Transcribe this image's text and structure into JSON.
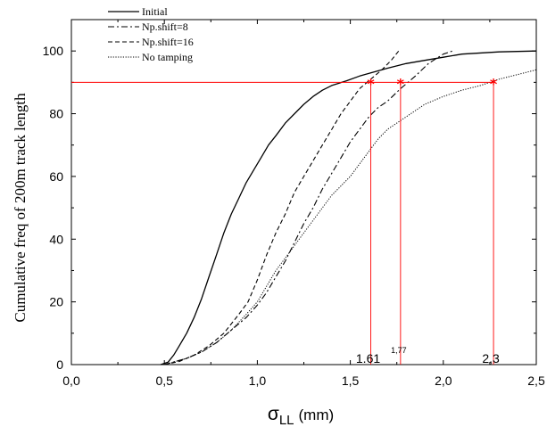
{
  "chart_data": {
    "type": "line",
    "xlabel_symbol": "σ",
    "xlabel_subscript": "LL",
    "xlabel_unit": "(mm)",
    "ylabel": "Cumulative freq of 200m track length",
    "xlim": [
      0,
      2.5
    ],
    "ylim": [
      0,
      110
    ],
    "x_ticks": [
      "0,0",
      "0,5",
      "1,0",
      "1,5",
      "2,0",
      "2,5"
    ],
    "y_ticks": [
      "0",
      "20",
      "40",
      "60",
      "80",
      "100"
    ],
    "legend_position": "top-left",
    "series": [
      {
        "name": "Initial",
        "style": "solid",
        "color": "#000000",
        "points": [
          [
            0.48,
            0
          ],
          [
            0.52,
            0.8
          ],
          [
            0.55,
            3
          ],
          [
            0.58,
            6
          ],
          [
            0.62,
            10
          ],
          [
            0.66,
            15
          ],
          [
            0.7,
            21
          ],
          [
            0.74,
            28
          ],
          [
            0.78,
            35
          ],
          [
            0.82,
            42
          ],
          [
            0.86,
            48
          ],
          [
            0.9,
            53
          ],
          [
            0.94,
            58
          ],
          [
            0.98,
            62
          ],
          [
            1.02,
            66
          ],
          [
            1.06,
            70
          ],
          [
            1.1,
            73
          ],
          [
            1.15,
            77
          ],
          [
            1.2,
            80
          ],
          [
            1.25,
            83
          ],
          [
            1.3,
            85.5
          ],
          [
            1.35,
            87.5
          ],
          [
            1.4,
            89
          ],
          [
            1.48,
            90.5
          ],
          [
            1.55,
            92
          ],
          [
            1.61,
            93
          ],
          [
            1.7,
            94.5
          ],
          [
            1.8,
            96
          ],
          [
            1.9,
            97
          ],
          [
            2.0,
            98
          ],
          [
            2.1,
            99
          ],
          [
            2.3,
            99.7
          ],
          [
            2.5,
            100
          ]
        ]
      },
      {
        "name": "Np.shift=8",
        "style": "dashdot",
        "color": "#000000",
        "points": [
          [
            0.5,
            0
          ],
          [
            0.56,
            1
          ],
          [
            0.62,
            2
          ],
          [
            0.7,
            4
          ],
          [
            0.78,
            7
          ],
          [
            0.86,
            11
          ],
          [
            0.94,
            15
          ],
          [
            1.0,
            19
          ],
          [
            1.05,
            23
          ],
          [
            1.1,
            28
          ],
          [
            1.15,
            33
          ],
          [
            1.2,
            39
          ],
          [
            1.25,
            45
          ],
          [
            1.3,
            50
          ],
          [
            1.35,
            56
          ],
          [
            1.4,
            61
          ],
          [
            1.45,
            66
          ],
          [
            1.5,
            71
          ],
          [
            1.55,
            75
          ],
          [
            1.6,
            79
          ],
          [
            1.65,
            82
          ],
          [
            1.7,
            84
          ],
          [
            1.77,
            88
          ],
          [
            1.85,
            92
          ],
          [
            1.92,
            96
          ],
          [
            2.0,
            99
          ],
          [
            2.05,
            100
          ]
        ]
      },
      {
        "name": "Np.shift=16",
        "style": "dashed",
        "color": "#000000",
        "points": [
          [
            0.5,
            0
          ],
          [
            0.58,
            1
          ],
          [
            0.66,
            3
          ],
          [
            0.74,
            6
          ],
          [
            0.82,
            10
          ],
          [
            0.9,
            16
          ],
          [
            0.95,
            20
          ],
          [
            1.0,
            27
          ],
          [
            1.05,
            35
          ],
          [
            1.1,
            42
          ],
          [
            1.15,
            48
          ],
          [
            1.2,
            55
          ],
          [
            1.25,
            60
          ],
          [
            1.3,
            65
          ],
          [
            1.35,
            70
          ],
          [
            1.4,
            75
          ],
          [
            1.45,
            80
          ],
          [
            1.5,
            84
          ],
          [
            1.55,
            88
          ],
          [
            1.61,
            91
          ],
          [
            1.67,
            94
          ],
          [
            1.72,
            97
          ],
          [
            1.76,
            100
          ]
        ]
      },
      {
        "name": "No tamping",
        "style": "dotted",
        "color": "#000000",
        "points": [
          [
            0.5,
            0
          ],
          [
            0.56,
            1
          ],
          [
            0.62,
            2
          ],
          [
            0.7,
            4
          ],
          [
            0.78,
            7
          ],
          [
            0.86,
            11
          ],
          [
            0.94,
            16
          ],
          [
            1.0,
            20
          ],
          [
            1.05,
            25
          ],
          [
            1.1,
            30
          ],
          [
            1.15,
            34
          ],
          [
            1.2,
            38
          ],
          [
            1.25,
            42
          ],
          [
            1.3,
            46
          ],
          [
            1.35,
            50
          ],
          [
            1.4,
            54
          ],
          [
            1.45,
            57
          ],
          [
            1.5,
            60
          ],
          [
            1.55,
            64
          ],
          [
            1.6,
            68
          ],
          [
            1.65,
            72
          ],
          [
            1.7,
            75
          ],
          [
            1.75,
            77
          ],
          [
            1.8,
            79
          ],
          [
            1.9,
            83
          ],
          [
            2.0,
            85.5
          ],
          [
            2.1,
            87.5
          ],
          [
            2.2,
            89
          ],
          [
            2.3,
            91
          ],
          [
            2.4,
            92.5
          ],
          [
            2.5,
            94
          ]
        ]
      }
    ],
    "reference": {
      "y": 90,
      "color": "#ff0000",
      "markers": [
        {
          "x": 1.61,
          "label": "1.61",
          "label_size": "large"
        },
        {
          "x": 1.77,
          "label": "1,77",
          "label_size": "small"
        },
        {
          "x": 2.27,
          "label": "2,3",
          "label_size": "large"
        }
      ]
    }
  }
}
